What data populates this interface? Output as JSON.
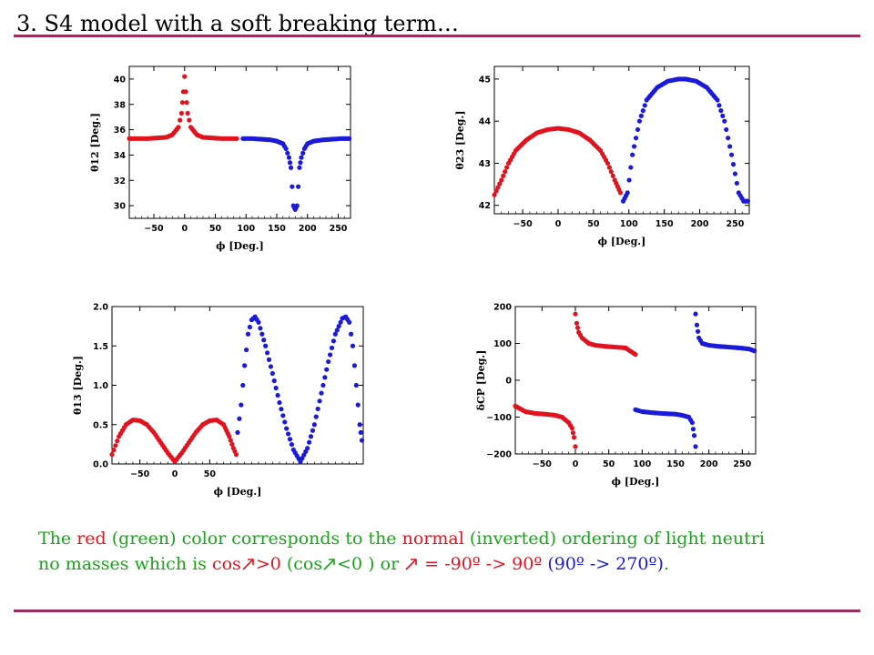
{
  "slide": {
    "title": "3. S4 model with a soft breaking term…"
  },
  "caption": {
    "line1": {
      "p1": "The ",
      "red": "red",
      "p2": " (green) color corresponds to the ",
      "normal": "normal",
      "p3": " (inverted) ordering of light neutri"
    },
    "line2": {
      "p1": "no masses which is ",
      "cos_pos": "cos",
      "gt0": ">0",
      "p2": " (cos",
      "lt0": "<0 )",
      "p3": " or ",
      "range_red": " = -90º -> 90º",
      "p4": " ",
      "range_blue": "(90º -> 270º)",
      "end": "."
    },
    "phi_icon": "phi-glyph-icon"
  },
  "chart_data": [
    {
      "type": "scatter",
      "xlabel": "ϕ [Deg.]",
      "ylabel": "θ12 [Deg.]",
      "xlim": [
        -90,
        270
      ],
      "ylim": [
        29,
        41
      ],
      "xticks": [
        -50,
        0,
        50,
        100,
        150,
        200,
        250
      ],
      "yticks": [
        30,
        32,
        34,
        36,
        38,
        40
      ],
      "series": [
        {
          "color": "#e0131f",
          "x": [
            -90,
            -75,
            -60,
            -45,
            -30,
            -20,
            -10,
            -5,
            -2,
            0,
            2,
            5,
            10,
            20,
            30,
            45,
            60,
            75,
            85
          ],
          "values": [
            35.3,
            35.3,
            35.3,
            35.35,
            35.4,
            35.6,
            36.2,
            37.3,
            39.0,
            40.2,
            39.0,
            37.3,
            36.2,
            35.6,
            35.4,
            35.35,
            35.3,
            35.3,
            35.3
          ]
        },
        {
          "color": "#1a1ad8",
          "x": [
            95,
            110,
            125,
            140,
            150,
            160,
            165,
            170,
            173,
            175,
            177,
            180,
            183,
            185,
            187,
            190,
            195,
            200,
            210,
            225,
            240,
            255,
            268
          ],
          "values": [
            35.3,
            35.3,
            35.25,
            35.2,
            35.1,
            34.9,
            34.5,
            33.8,
            33.0,
            31.5,
            30.0,
            29.7,
            30.0,
            31.5,
            33.0,
            33.8,
            34.5,
            34.9,
            35.1,
            35.2,
            35.25,
            35.3,
            35.3
          ]
        }
      ]
    },
    {
      "type": "scatter",
      "xlabel": "ϕ [Deg.]",
      "ylabel": "θ23 [Deg.]",
      "xlim": [
        -90,
        270
      ],
      "ylim": [
        41.8,
        45.3
      ],
      "xticks": [
        -50,
        0,
        50,
        100,
        150,
        200,
        250
      ],
      "yticks": [
        42,
        43,
        44,
        45
      ],
      "series": [
        {
          "color": "#e0131f",
          "x": [
            -90,
            -80,
            -70,
            -60,
            -45,
            -30,
            -15,
            0,
            15,
            30,
            45,
            60,
            70,
            80,
            88
          ],
          "values": [
            42.25,
            42.6,
            43.0,
            43.3,
            43.55,
            43.72,
            43.8,
            43.83,
            43.8,
            43.72,
            43.55,
            43.3,
            43.0,
            42.6,
            42.3
          ]
        },
        {
          "color": "#1a1ad8",
          "x": [
            92,
            98,
            105,
            115,
            125,
            140,
            155,
            170,
            180,
            195,
            210,
            225,
            235,
            245,
            255,
            262,
            268
          ],
          "values": [
            42.1,
            42.3,
            43.2,
            44.0,
            44.5,
            44.8,
            44.95,
            45.0,
            45.0,
            44.95,
            44.8,
            44.5,
            44.0,
            43.2,
            42.3,
            42.1,
            42.1
          ]
        }
      ]
    },
    {
      "type": "scatter",
      "xlabel": "ϕ [Deg.]",
      "ylabel": "θ13 [Deg.]",
      "xlim": [
        -90,
        270
      ],
      "ylim": [
        0,
        2.0
      ],
      "xticks": [
        -50,
        0,
        50
      ],
      "yticks": [
        0.0,
        0.5,
        1.0,
        1.5,
        2.0
      ],
      "series": [
        {
          "color": "#e0131f",
          "x": [
            -90,
            -80,
            -70,
            -60,
            -50,
            -40,
            -30,
            -20,
            -10,
            0,
            10,
            20,
            30,
            40,
            50,
            60,
            70,
            78,
            84,
            88
          ],
          "values": [
            0.12,
            0.35,
            0.5,
            0.56,
            0.55,
            0.5,
            0.4,
            0.27,
            0.14,
            0.03,
            0.14,
            0.27,
            0.4,
            0.5,
            0.55,
            0.56,
            0.5,
            0.35,
            0.2,
            0.12
          ]
        },
        {
          "color": "#1a1ad8",
          "x": [
            90,
            95,
            100,
            105,
            110,
            115,
            120,
            130,
            140,
            150,
            160,
            170,
            180,
            190,
            200,
            210,
            220,
            230,
            240,
            245,
            250,
            255,
            260,
            265,
            268
          ],
          "values": [
            0.4,
            0.75,
            1.25,
            1.65,
            1.83,
            1.87,
            1.8,
            1.5,
            1.15,
            0.78,
            0.45,
            0.18,
            0.03,
            0.2,
            0.5,
            0.9,
            1.3,
            1.65,
            1.85,
            1.87,
            1.8,
            1.5,
            1.0,
            0.5,
            0.3
          ]
        }
      ]
    },
    {
      "type": "scatter",
      "xlabel": "ϕ [Deg.]",
      "ylabel": "δCP [Deg.]",
      "xlim": [
        -90,
        270
      ],
      "ylim": [
        -200,
        200
      ],
      "xticks": [
        -50,
        0,
        50,
        100,
        150,
        200,
        250
      ],
      "yticks": [
        -200,
        -100,
        0,
        100,
        200
      ],
      "series": [
        {
          "color": "#e0131f",
          "x": [
            -90,
            -75,
            -60,
            -45,
            -30,
            -20,
            -10,
            -5,
            -2,
            0
          ],
          "values": [
            -70,
            -85,
            -90,
            -92,
            -95,
            -100,
            -115,
            -130,
            -155,
            -180
          ]
        },
        {
          "color": "#e0131f",
          "x": [
            0,
            2,
            5,
            10,
            20,
            30,
            45,
            60,
            75,
            90
          ],
          "values": [
            180,
            155,
            130,
            115,
            100,
            95,
            92,
            90,
            88,
            70
          ]
        },
        {
          "color": "#1a1ad8",
          "x": [
            90,
            100,
            115,
            130,
            150,
            160,
            170,
            175,
            178,
            180
          ],
          "values": [
            -80,
            -85,
            -88,
            -90,
            -92,
            -95,
            -100,
            -115,
            -150,
            -180
          ]
        },
        {
          "color": "#1a1ad8",
          "x": [
            180,
            182,
            185,
            190,
            200,
            215,
            230,
            245,
            260,
            268
          ],
          "values": [
            180,
            150,
            115,
            100,
            95,
            92,
            90,
            88,
            85,
            80
          ]
        }
      ]
    }
  ]
}
